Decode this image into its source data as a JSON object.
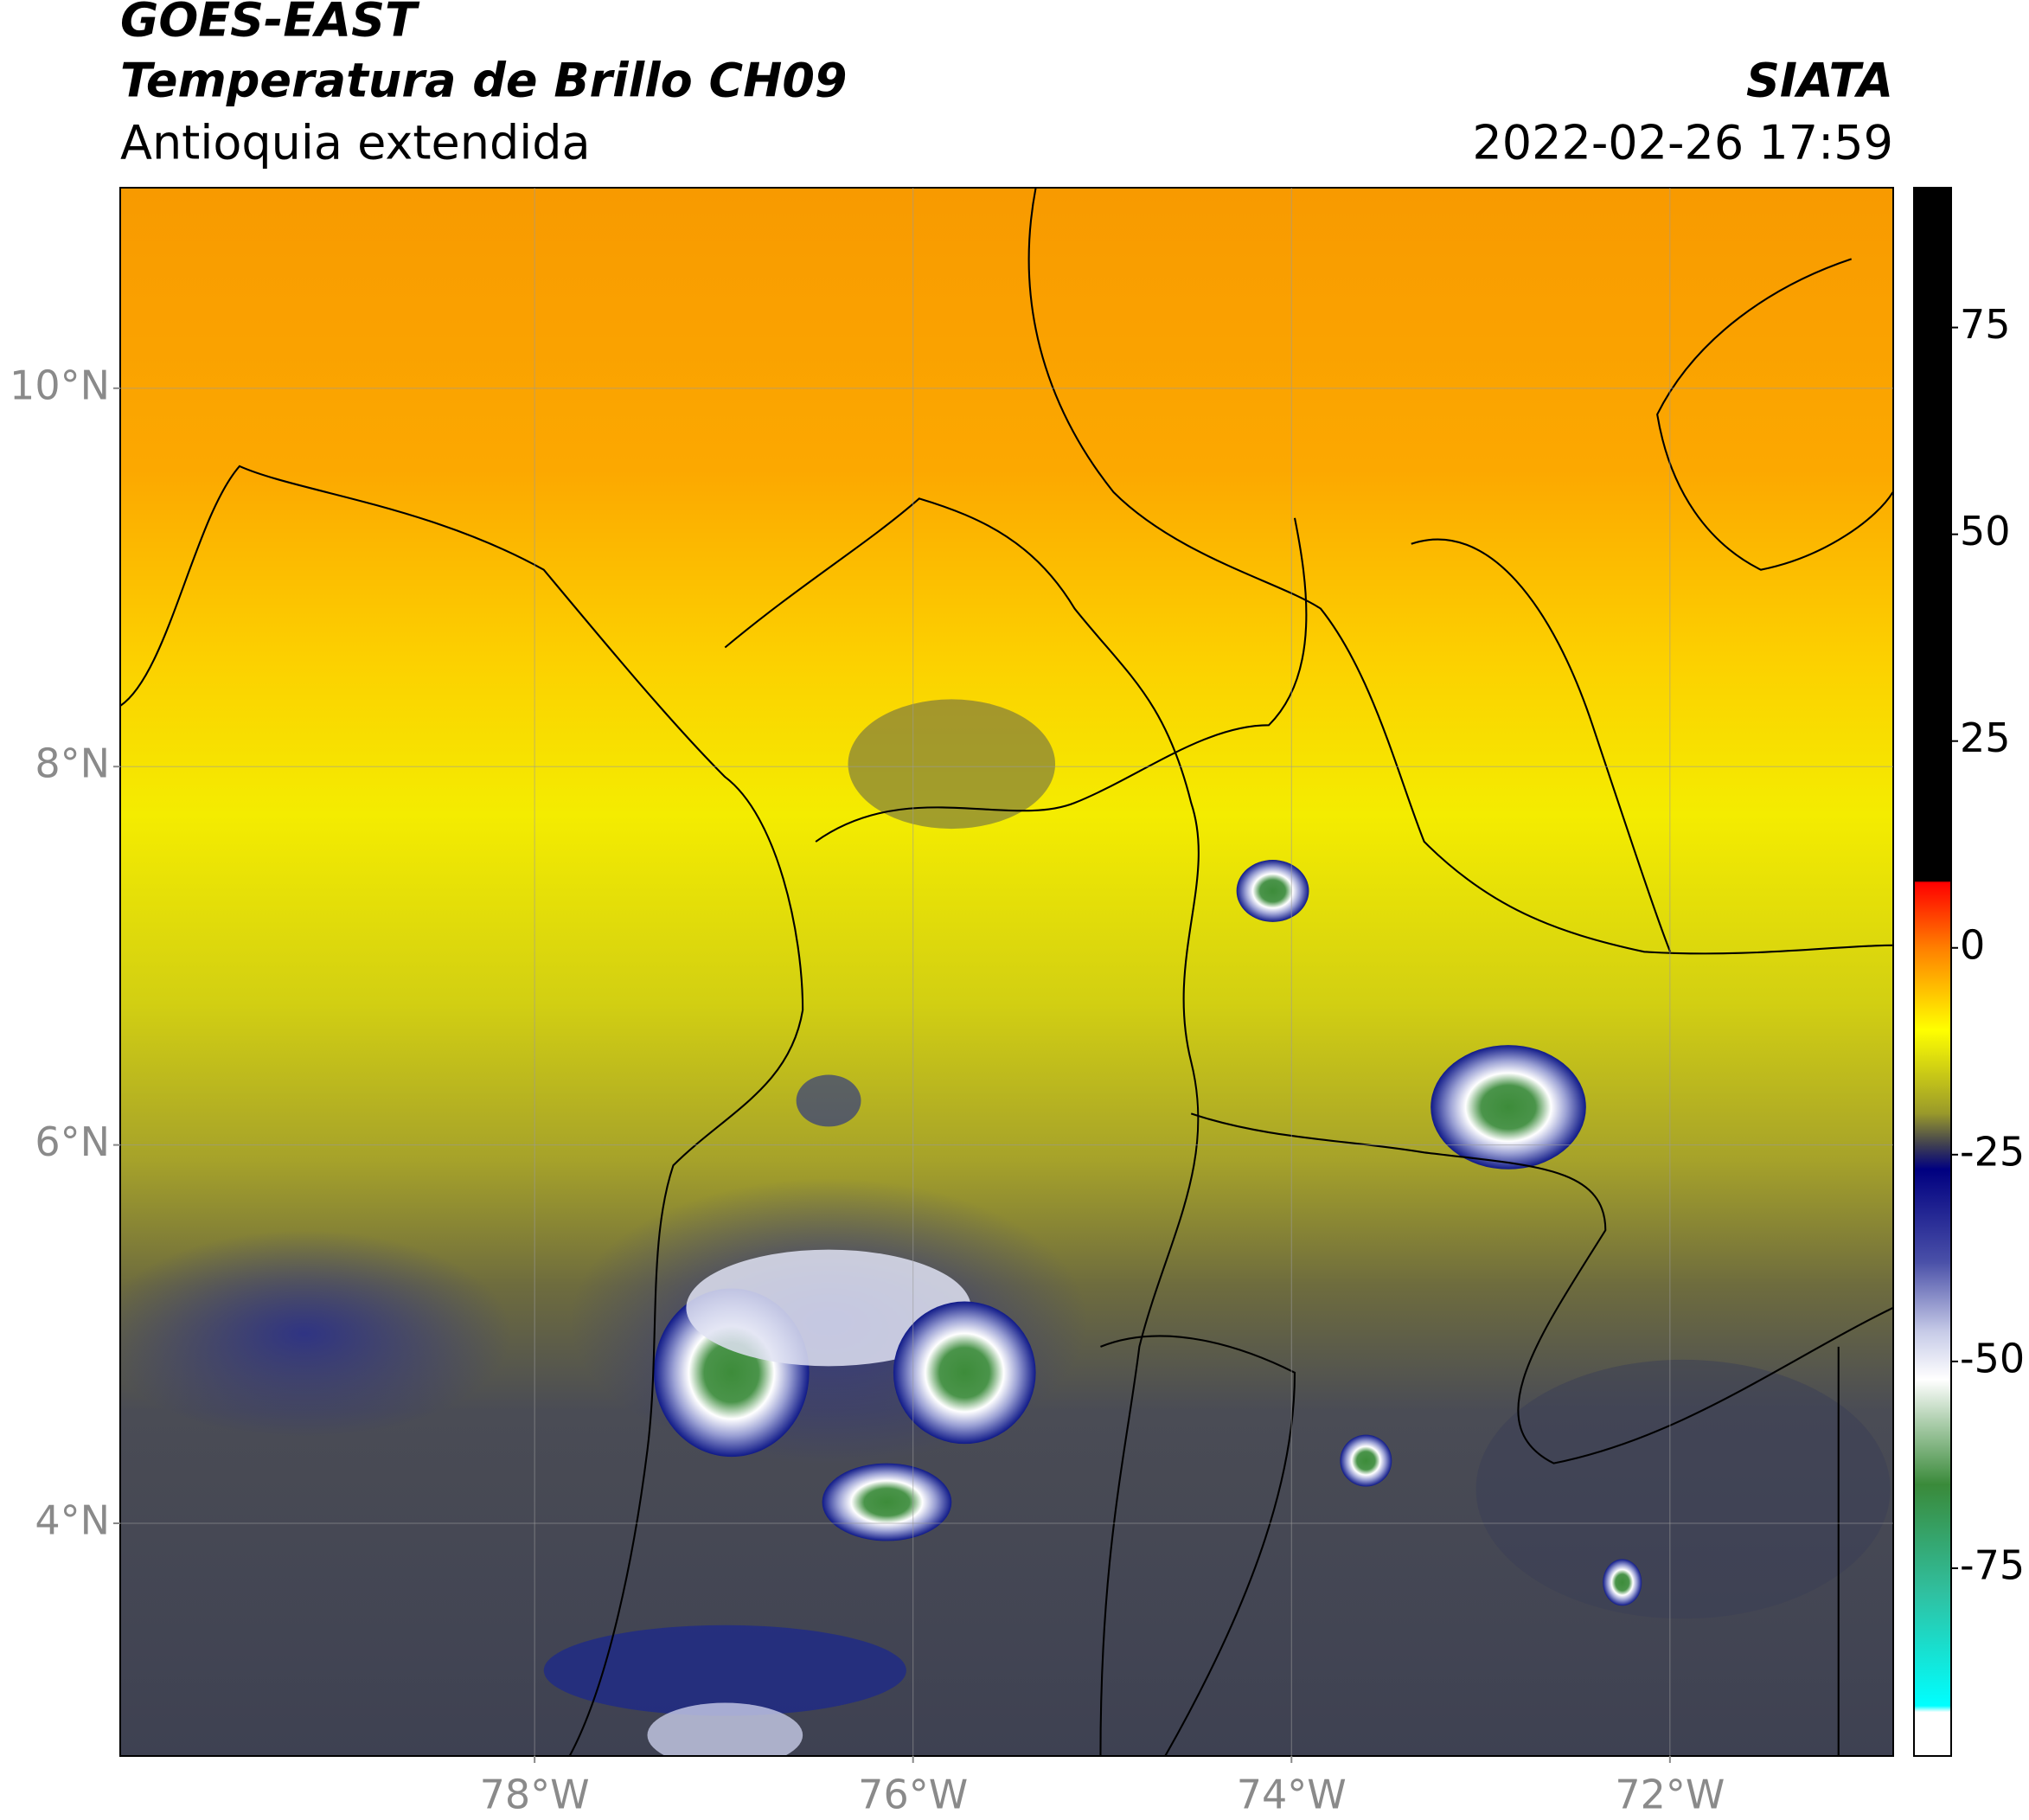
{
  "chart_data": {
    "type": "map",
    "title": "GOES-EAST",
    "subtitle": "Temperatura de Brillo CH09",
    "region": "Antioquia extendida",
    "source": "SIATA",
    "datetime": "2022-02-26 17:59",
    "xlim": [
      -80.19,
      -70.82
    ],
    "ylim": [
      2.77,
      11.06
    ],
    "xticks": [
      {
        "value": -78,
        "label": "78°W"
      },
      {
        "value": -76,
        "label": "76°W"
      },
      {
        "value": -74,
        "label": "74°W"
      },
      {
        "value": -72,
        "label": "72°W"
      }
    ],
    "yticks": [
      {
        "value": 4,
        "label": "4°N"
      },
      {
        "value": 6,
        "label": "6°N"
      },
      {
        "value": 8,
        "label": "8°N"
      },
      {
        "value": 10,
        "label": "10°N"
      }
    ],
    "grid": true,
    "colorbar": {
      "lim": [
        -97.7,
        91.9
      ],
      "ticks": [
        -75,
        -50,
        -25,
        0,
        25,
        50,
        75
      ]
    }
  }
}
